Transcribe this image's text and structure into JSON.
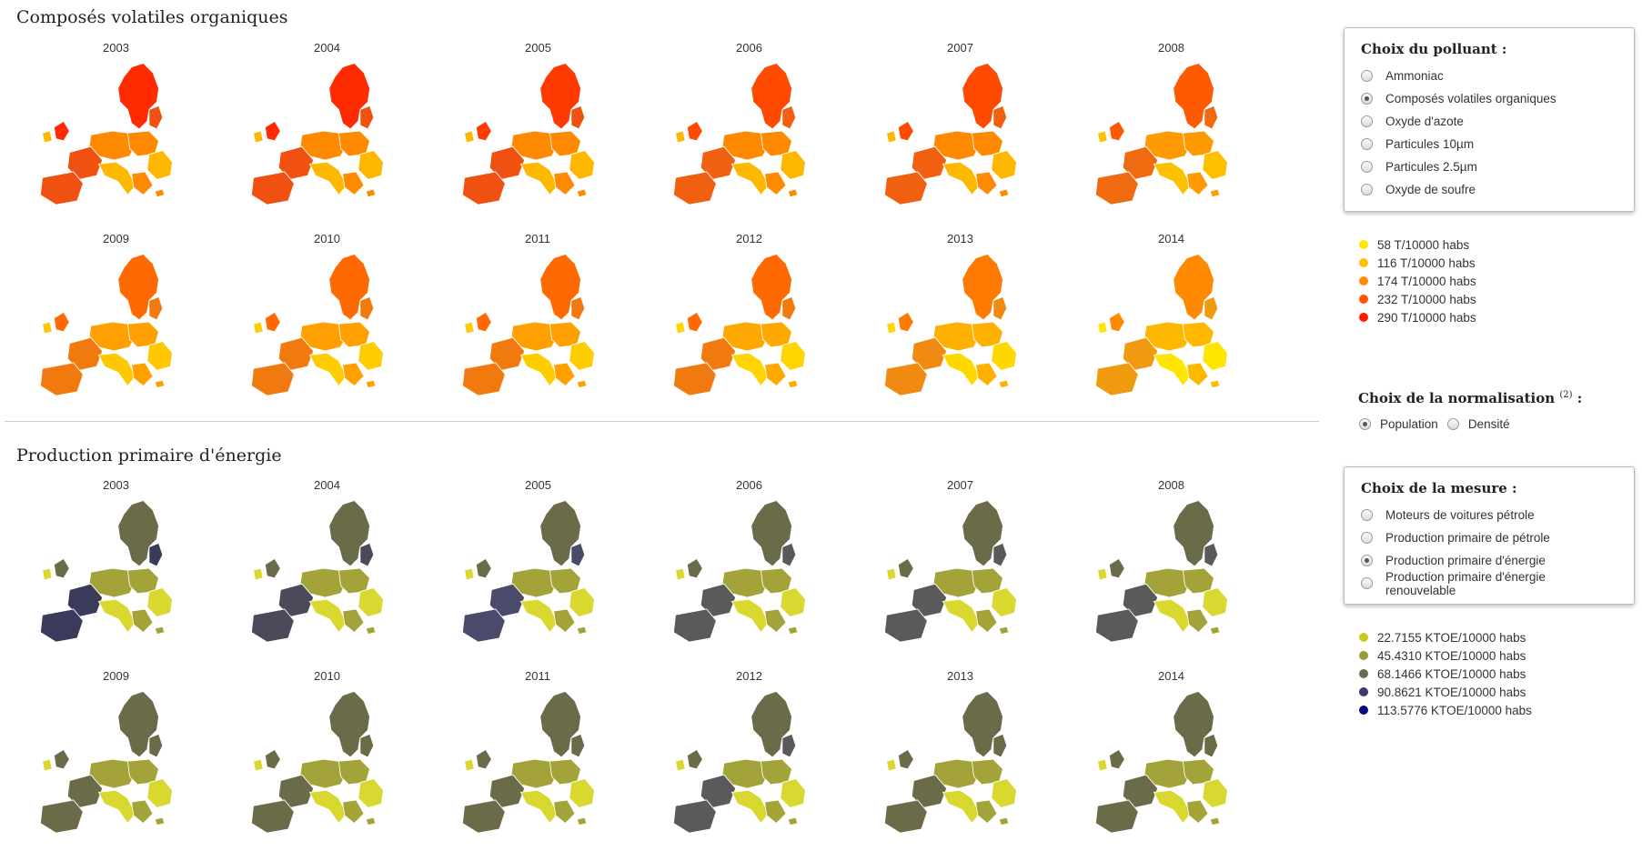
{
  "sections": {
    "pollutant": {
      "title": "Composés volatiles organiques",
      "maps": [
        {
          "year": "2003",
          "palette": [
            "#ff2a00",
            "#f05010",
            "#ff8a00",
            "#ffb800"
          ]
        },
        {
          "year": "2004",
          "palette": [
            "#ff2a00",
            "#f05010",
            "#ff8a00",
            "#ffb800"
          ]
        },
        {
          "year": "2005",
          "palette": [
            "#ff3a00",
            "#f05010",
            "#ff8a00",
            "#ffb800"
          ]
        },
        {
          "year": "2006",
          "palette": [
            "#ff4a00",
            "#f06010",
            "#ff8a00",
            "#ffb800"
          ]
        },
        {
          "year": "2007",
          "palette": [
            "#ff4a00",
            "#f06010",
            "#ff8a00",
            "#ffb800"
          ]
        },
        {
          "year": "2008",
          "palette": [
            "#ff5a00",
            "#f06a10",
            "#ff9a00",
            "#ffc000"
          ]
        },
        {
          "year": "2009",
          "palette": [
            "#ff6a00",
            "#f07a10",
            "#ffa000",
            "#ffc800"
          ]
        },
        {
          "year": "2010",
          "palette": [
            "#ff6a00",
            "#f07a10",
            "#ffa000",
            "#ffcc00"
          ]
        },
        {
          "year": "2011",
          "palette": [
            "#ff6a00",
            "#f07a10",
            "#ffa000",
            "#ffcc00"
          ]
        },
        {
          "year": "2012",
          "palette": [
            "#ff6a00",
            "#f07a10",
            "#ffa800",
            "#ffd400"
          ]
        },
        {
          "year": "2013",
          "palette": [
            "#ff7a00",
            "#f08a10",
            "#ffb000",
            "#ffd800"
          ]
        },
        {
          "year": "2014",
          "palette": [
            "#ff8a00",
            "#f09a10",
            "#ffb800",
            "#ffe600"
          ]
        }
      ]
    },
    "energy": {
      "title": "Production primaire d'énergie",
      "maps": [
        {
          "year": "2003",
          "palette": [
            "#6b6b4a",
            "#3a3a5a",
            "#a3a33a",
            "#d8d830"
          ]
        },
        {
          "year": "2004",
          "palette": [
            "#6b6b4a",
            "#4a4a5a",
            "#a3a33a",
            "#d8d830"
          ]
        },
        {
          "year": "2005",
          "palette": [
            "#6b6b4a",
            "#4a4a6a",
            "#a3a33a",
            "#d8d830"
          ]
        },
        {
          "year": "2006",
          "palette": [
            "#6b6b4a",
            "#5a5a5a",
            "#a3a33a",
            "#d8d830"
          ]
        },
        {
          "year": "2007",
          "palette": [
            "#6b6b4a",
            "#5a5a5a",
            "#a3a33a",
            "#d8d830"
          ]
        },
        {
          "year": "2008",
          "palette": [
            "#6b6b4a",
            "#5a5a5a",
            "#a3a33a",
            "#d8d830"
          ]
        },
        {
          "year": "2009",
          "palette": [
            "#6b6b4a",
            "#6b6b4a",
            "#a3a33a",
            "#d8d830"
          ]
        },
        {
          "year": "2010",
          "palette": [
            "#6b6b4a",
            "#6b6b4a",
            "#a3a33a",
            "#d8d830"
          ]
        },
        {
          "year": "2011",
          "palette": [
            "#6b6b4a",
            "#6b6b4a",
            "#a3a33a",
            "#d8d830"
          ]
        },
        {
          "year": "2012",
          "palette": [
            "#6b6b4a",
            "#5a5a5a",
            "#a3a33a",
            "#d8d830"
          ]
        },
        {
          "year": "2013",
          "palette": [
            "#6b6b4a",
            "#6b6b4a",
            "#a3a33a",
            "#d8d830"
          ]
        },
        {
          "year": "2014",
          "palette": [
            "#6b6b4a",
            "#6b6b4a",
            "#a3a33a",
            "#d8d830"
          ]
        }
      ]
    }
  },
  "pollutant_panel": {
    "title": "Choix du polluant :",
    "options": [
      {
        "label": "Ammoniac",
        "checked": false
      },
      {
        "label": "Composés volatiles organiques",
        "checked": true
      },
      {
        "label": "Oxyde d'azote",
        "checked": false
      },
      {
        "label": "Particules 10µm",
        "checked": false
      },
      {
        "label": "Particules 2.5µm",
        "checked": false
      },
      {
        "label": "Oxyde de soufre",
        "checked": false
      }
    ]
  },
  "pollutant_legend": [
    {
      "label": "58 T/10000 habs",
      "color": "#ffe600"
    },
    {
      "label": "116 T/10000 habs",
      "color": "#ffc000"
    },
    {
      "label": "174 T/10000 habs",
      "color": "#ff8c00"
    },
    {
      "label": "232 T/10000 habs",
      "color": "#ff5500"
    },
    {
      "label": "290 T/10000 habs",
      "color": "#ff1a00"
    }
  ],
  "normalisation": {
    "title": "Choix de la normalisation",
    "sup": "(2)",
    "suffix": " :",
    "options": [
      {
        "label": "Population",
        "checked": true
      },
      {
        "label": "Densité",
        "checked": false
      }
    ]
  },
  "measure_panel": {
    "title": "Choix de la mesure :",
    "options": [
      {
        "label": "Moteurs de voitures pétrole",
        "checked": false
      },
      {
        "label": "Production primaire de pétrole",
        "checked": false
      },
      {
        "label": "Production primaire d'énergie",
        "checked": true
      },
      {
        "label": "Production primaire d'énergie renouvelable",
        "checked": false
      }
    ]
  },
  "energy_legend": [
    {
      "label": "22.7155 KTOE/10000 habs",
      "color": "#c9c920"
    },
    {
      "label": "45.4310 KTOE/10000 habs",
      "color": "#9a9a3a"
    },
    {
      "label": "68.1466 KTOE/10000 habs",
      "color": "#6b6b4a"
    },
    {
      "label": "90.8621 KTOE/10000 habs",
      "color": "#3a3a6a"
    },
    {
      "label": "113.5776 KTOE/10000 habs",
      "color": "#0a0a80"
    }
  ]
}
